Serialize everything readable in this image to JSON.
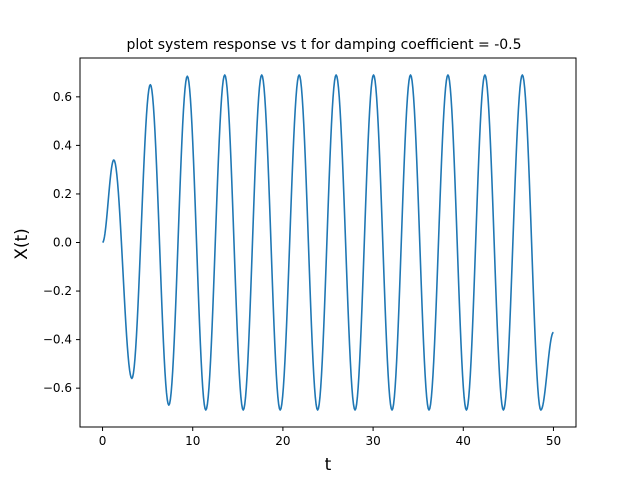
{
  "chart_data": {
    "type": "line",
    "title": "plot system response vs t for damping coefficient = -0.5",
    "xlabel": "t",
    "ylabel": "X(t)",
    "xlim": [
      -2.5,
      52.5
    ],
    "ylim": [
      -0.76,
      0.76
    ],
    "grid": false,
    "legend": "none",
    "x_ticks": [
      0,
      10,
      20,
      30,
      40,
      50
    ],
    "x_tick_labels": [
      "0",
      "10",
      "20",
      "30",
      "40",
      "50"
    ],
    "y_ticks": [
      -0.6,
      -0.4,
      -0.2,
      0.0,
      0.2,
      0.4,
      0.6
    ],
    "y_tick_labels": [
      "−0.6",
      "−0.4",
      "−0.2",
      "0.0",
      "0.2",
      "0.4",
      "0.6"
    ],
    "series": [
      {
        "color": "#1f77b4",
        "x": [
          0,
          1.25,
          3.25,
          5.3,
          7.35,
          9.4,
          11.45,
          13.55,
          15.6,
          17.65,
          19.7,
          21.8,
          23.85,
          25.9,
          28.0,
          30.05,
          32.1,
          34.15,
          36.2,
          38.3,
          40.35,
          42.4,
          44.45,
          46.55,
          48.6,
          50.0
        ],
        "y": [
          0.0,
          0.34,
          -0.56,
          0.65,
          -0.67,
          0.685,
          -0.69,
          0.69,
          -0.69,
          0.69,
          -0.69,
          0.69,
          -0.69,
          0.69,
          -0.69,
          0.69,
          -0.69,
          0.69,
          -0.69,
          0.69,
          -0.69,
          0.69,
          -0.69,
          0.69,
          -0.69,
          -0.37
        ]
      }
    ]
  }
}
